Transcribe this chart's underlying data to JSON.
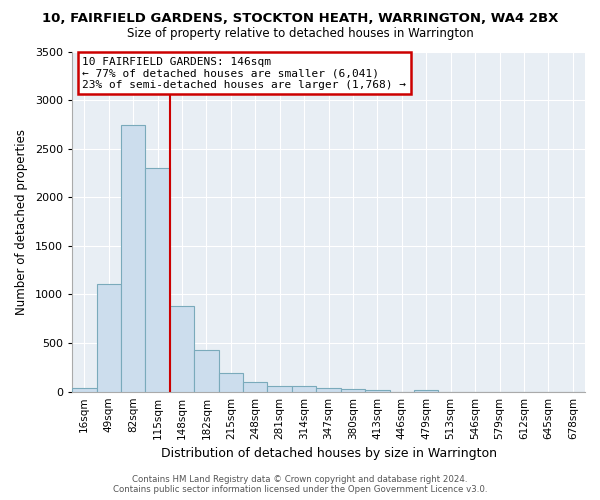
{
  "title": "10, FAIRFIELD GARDENS, STOCKTON HEATH, WARRINGTON, WA4 2BX",
  "subtitle": "Size of property relative to detached houses in Warrington",
  "xlabel": "Distribution of detached houses by size in Warrington",
  "ylabel": "Number of detached properties",
  "bar_color": "#ccdded",
  "bar_edge_color": "#7aaabb",
  "vline_color": "#cc0000",
  "vline_x": 3.5,
  "annotation_line1": "10 FAIRFIELD GARDENS: 146sqm",
  "annotation_line2": "← 77% of detached houses are smaller (6,041)",
  "annotation_line3": "23% of semi-detached houses are larger (1,768) →",
  "categories": [
    "16sqm",
    "49sqm",
    "82sqm",
    "115sqm",
    "148sqm",
    "182sqm",
    "215sqm",
    "248sqm",
    "281sqm",
    "314sqm",
    "347sqm",
    "380sqm",
    "413sqm",
    "446sqm",
    "479sqm",
    "513sqm",
    "546sqm",
    "579sqm",
    "612sqm",
    "645sqm",
    "678sqm"
  ],
  "values": [
    40,
    1110,
    2740,
    2300,
    880,
    430,
    195,
    95,
    60,
    55,
    40,
    25,
    20,
    0,
    15,
    0,
    0,
    0,
    0,
    0,
    0
  ],
  "ylim": [
    0,
    3500
  ],
  "yticks": [
    0,
    500,
    1000,
    1500,
    2000,
    2500,
    3000,
    3500
  ],
  "plot_bg_color": "#e8eef4",
  "grid_color": "#ffffff",
  "footer_line1": "Contains HM Land Registry data © Crown copyright and database right 2024.",
  "footer_line2": "Contains public sector information licensed under the Open Government Licence v3.0."
}
